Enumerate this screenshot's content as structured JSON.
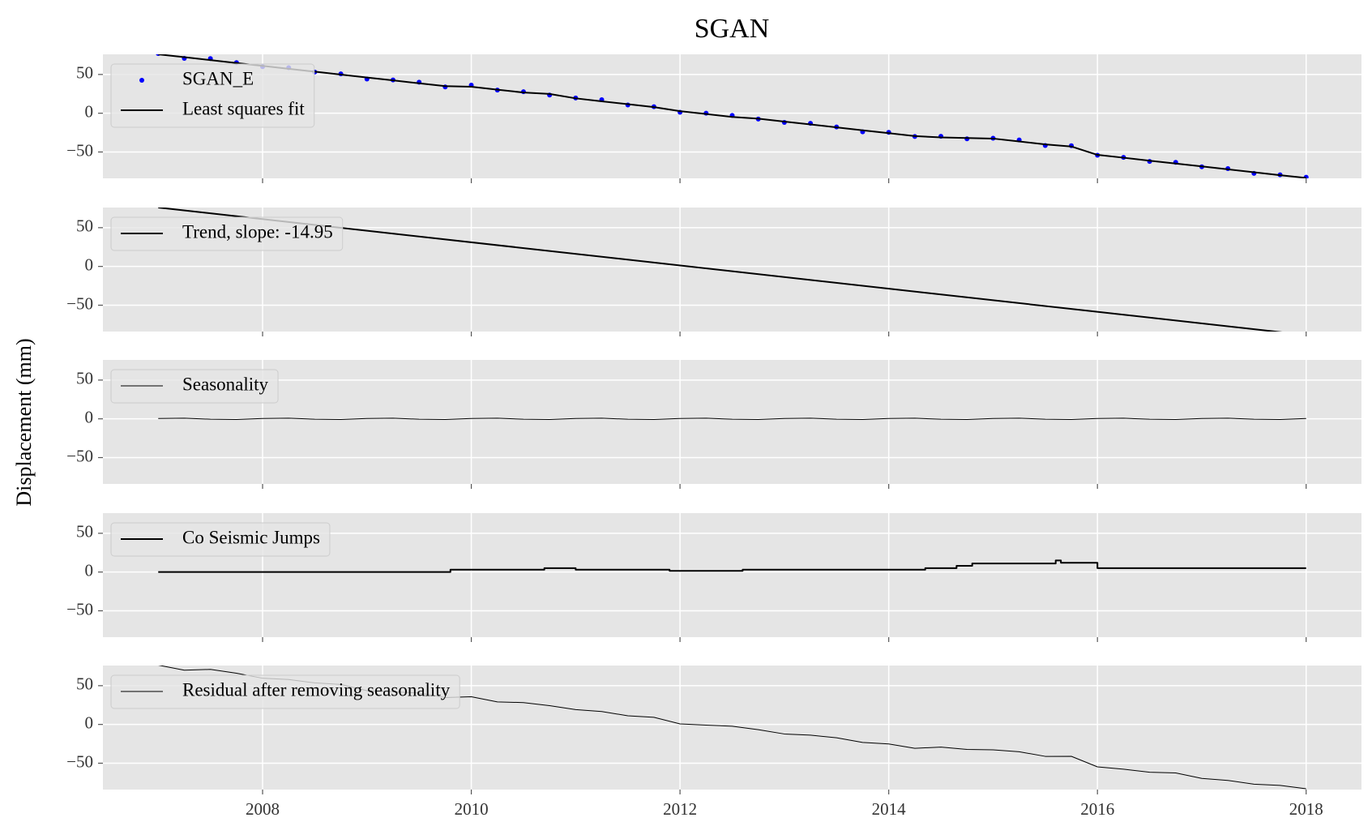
{
  "title": "SGAN",
  "ylabel": "Displacement (mm)",
  "chart_data": [
    {
      "type": "line",
      "xlim": [
        2006.47,
        2018.53
      ],
      "ylim": [
        -84,
        76
      ],
      "yticks": [
        {
          "value": -50,
          "label": "−50"
        },
        0,
        50
      ],
      "grid": true,
      "legend": "upper left",
      "x": [
        2007,
        2007.25,
        2007.5,
        2007.75,
        2008,
        2008.25,
        2008.5,
        2008.75,
        2009,
        2009.25,
        2009.5,
        2009.75,
        2010,
        2010.25,
        2010.5,
        2010.75,
        2011,
        2011.25,
        2011.5,
        2011.75,
        2012,
        2012.25,
        2012.5,
        2012.75,
        2013,
        2013.25,
        2013.5,
        2013.75,
        2014,
        2014.25,
        2014.5,
        2014.75,
        2015,
        2015.25,
        2015.5,
        2015.75,
        2016,
        2016.25,
        2016.5,
        2016.75,
        2017,
        2017.25,
        2017.5,
        2017.75,
        2018
      ],
      "series": [
        {
          "name": "SGAN_E",
          "color": "#0000ff",
          "style": "scatter",
          "values": [
            77,
            70.8,
            70.5,
            65.3,
            60.1,
            58.8,
            53.1,
            50.8,
            44.1,
            42.9,
            40.1,
            33.9,
            36.2,
            29.9,
            27.7,
            23.4,
            19.7,
            17.4,
            10.7,
            8.4,
            1.2,
            0,
            -2.8,
            -7.5,
            -11.8,
            -13.0,
            -17.7,
            -24.0,
            -24.7,
            -30.0,
            -29.7,
            -33.0,
            -32.2,
            -34.4,
            -41.7,
            -41.9,
            -54.2,
            -56.9,
            -62.2,
            -63.4,
            -69.1,
            -71.4,
            -77.6,
            -79.4,
            -82.5
          ]
        },
        {
          "name": "Least squares fit",
          "color": "#000000",
          "style": "line",
          "linewidth": 2,
          "values": [
            76,
            72.3,
            68.5,
            64.8,
            61.1,
            57.3,
            53.6,
            49.8,
            46.1,
            42.4,
            38.6,
            34.9,
            34.2,
            30.4,
            26.7,
            24.9,
            19.2,
            15.4,
            11.7,
            7.9,
            2.7,
            -1.0,
            -4.8,
            -7.0,
            -10.8,
            -14.5,
            -18.2,
            -22.0,
            -25.7,
            -29.5,
            -31.2,
            -32.0,
            -32.7,
            -36.4,
            -40.2,
            -42.9,
            -53.7,
            -57.4,
            -61.2,
            -64.9,
            -68.6,
            -72.4,
            -76.1,
            -79.9,
            -83.5
          ]
        }
      ]
    },
    {
      "type": "line",
      "xlim": [
        2006.47,
        2018.53
      ],
      "ylim": [
        -84,
        76
      ],
      "yticks": [
        {
          "value": -50,
          "label": "−50"
        },
        0,
        50
      ],
      "grid": true,
      "legend": "upper left",
      "x": [
        2007,
        2018
      ],
      "series": [
        {
          "name": "Trend, slope: -14.95",
          "color": "#000000",
          "style": "line",
          "linewidth": 2,
          "values": [
            76,
            -88.45
          ]
        }
      ]
    },
    {
      "type": "line",
      "xlim": [
        2006.47,
        2018.53
      ],
      "ylim": [
        -84,
        76
      ],
      "yticks": [
        {
          "value": -50,
          "label": "−50"
        },
        0,
        50
      ],
      "grid": true,
      "legend": "upper left",
      "x": [
        2007,
        2007.25,
        2007.5,
        2007.75,
        2008,
        2008.25,
        2008.5,
        2008.75,
        2009,
        2009.25,
        2009.5,
        2009.75,
        2010,
        2010.25,
        2010.5,
        2010.75,
        2011,
        2011.25,
        2011.5,
        2011.75,
        2012,
        2012.25,
        2012.5,
        2012.75,
        2013,
        2013.25,
        2013.5,
        2013.75,
        2014,
        2014.25,
        2014.5,
        2014.75,
        2015,
        2015.25,
        2015.5,
        2015.75,
        2016,
        2016.25,
        2016.5,
        2016.75,
        2017,
        2017.25,
        2017.5,
        2017.75,
        2018
      ],
      "series": [
        {
          "name": "Seasonality",
          "color": "#000000",
          "style": "line",
          "linewidth": 1,
          "values": [
            0.5,
            0.8,
            -0.5,
            -0.8,
            0.5,
            0.8,
            -0.5,
            -0.8,
            0.5,
            0.8,
            -0.5,
            -0.8,
            0.5,
            0.8,
            -0.5,
            -0.8,
            0.5,
            0.8,
            -0.5,
            -0.8,
            0.5,
            0.8,
            -0.5,
            -0.8,
            0.5,
            0.8,
            -0.5,
            -0.8,
            0.5,
            0.8,
            -0.5,
            -0.8,
            0.5,
            0.8,
            -0.5,
            -0.8,
            0.5,
            0.8,
            -0.5,
            -0.8,
            0.5,
            0.8,
            -0.5,
            -0.8,
            0.5
          ]
        }
      ]
    },
    {
      "type": "line",
      "xlim": [
        2006.47,
        2018.53
      ],
      "ylim": [
        -84,
        76
      ],
      "yticks": [
        {
          "value": -50,
          "label": "−50"
        },
        0,
        50
      ],
      "grid": true,
      "legend": "upper left",
      "x": [
        2007,
        2009.8,
        2009.8,
        2010.7,
        2010.7,
        2011.0,
        2011.0,
        2011.9,
        2011.9,
        2012.6,
        2012.6,
        2014.35,
        2014.35,
        2014.65,
        2014.65,
        2014.8,
        2014.8,
        2015.6,
        2015.6,
        2015.65,
        2015.65,
        2016.0,
        2016.0,
        2018
      ],
      "series": [
        {
          "name": "Co Seismic Jumps",
          "color": "#000000",
          "style": "line",
          "linewidth": 2,
          "values": [
            0,
            0,
            3,
            3,
            5,
            5,
            3,
            3,
            1.5,
            1.5,
            3,
            3,
            5,
            5,
            8,
            8,
            11,
            11,
            15,
            15,
            12,
            12,
            5,
            5
          ]
        }
      ]
    },
    {
      "type": "line",
      "xlim": [
        2006.47,
        2018.53
      ],
      "ylim": [
        -84,
        76
      ],
      "yticks": [
        {
          "value": -50,
          "label": "−50"
        },
        0,
        50
      ],
      "xticks": [
        2008,
        2010,
        2012,
        2014,
        2016,
        2018
      ],
      "grid": true,
      "legend": "upper left",
      "x": [
        2007,
        2007.25,
        2007.5,
        2007.75,
        2008,
        2008.25,
        2008.5,
        2008.75,
        2009,
        2009.25,
        2009.5,
        2009.75,
        2010,
        2010.25,
        2010.5,
        2010.75,
        2011,
        2011.25,
        2011.5,
        2011.75,
        2012,
        2012.25,
        2012.5,
        2012.75,
        2013,
        2013.25,
        2013.5,
        2013.75,
        2014,
        2014.25,
        2014.5,
        2014.75,
        2015,
        2015.25,
        2015.5,
        2015.75,
        2016,
        2016.25,
        2016.5,
        2016.75,
        2017,
        2017.25,
        2017.5,
        2017.75,
        2018
      ],
      "series": [
        {
          "name": "Residual after removing seasonality",
          "color": "#000000",
          "style": "line",
          "linewidth": 1,
          "values": [
            76.5,
            70.0,
            71.0,
            66.1,
            59.6,
            58.0,
            53.6,
            51.6,
            43.6,
            42.1,
            40.6,
            34.7,
            35.7,
            29.1,
            28.2,
            24.2,
            19.2,
            16.6,
            11.2,
            9.2,
            0.7,
            -0.8,
            -2.3,
            -6.7,
            -12.3,
            -13.8,
            -17.2,
            -23.2,
            -25.2,
            -30.8,
            -29.2,
            -32.2,
            -32.7,
            -35.2,
            -41.2,
            -41.1,
            -54.7,
            -57.7,
            -61.7,
            -62.6,
            -69.6,
            -72.2,
            -77.1,
            -78.6,
            -83.0
          ]
        }
      ]
    }
  ]
}
